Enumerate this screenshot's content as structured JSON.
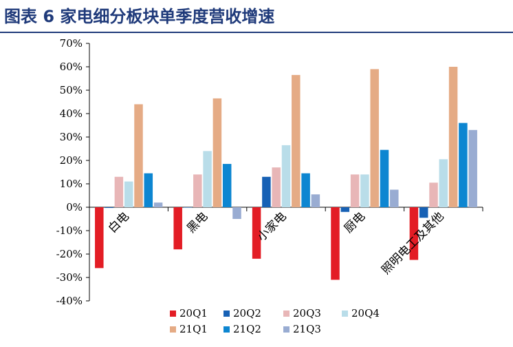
{
  "page": {
    "title": "图表 6  家电细分板块单季度营收增速"
  },
  "colors": {
    "title": "#1f3a7a",
    "series": [
      "#e31d25",
      "#1761b5",
      "#e8b6b7",
      "#b9dde9",
      "#e5ab85",
      "#0d86d1",
      "#99acd2"
    ]
  },
  "chart_data": {
    "type": "bar",
    "title": "",
    "xlabel": "",
    "ylabel": "",
    "categories": [
      "白电",
      "黑电",
      "小家电",
      "厨电",
      "照明电工及其他"
    ],
    "y_ticks": [
      "70%",
      "60%",
      "50%",
      "40%",
      "30%",
      "20%",
      "10%",
      "0%",
      "-10%",
      "-20%",
      "-30%",
      "-40%"
    ],
    "ylim": [
      -40,
      70
    ],
    "grid": false,
    "legend_position": "bottom",
    "series": [
      {
        "name": "20Q1",
        "values": [
          -26,
          -18,
          -22,
          -31,
          -22.5
        ]
      },
      {
        "name": "20Q2",
        "values": [
          -0.3,
          0,
          13,
          -2,
          -4.5
        ]
      },
      {
        "name": "20Q3",
        "values": [
          13,
          14,
          17,
          14,
          10.5
        ]
      },
      {
        "name": "20Q4",
        "values": [
          11,
          24,
          26.5,
          14,
          20.5
        ]
      },
      {
        "name": "21Q1",
        "values": [
          44,
          46.5,
          56.5,
          59,
          60
        ]
      },
      {
        "name": "21Q2",
        "values": [
          14.5,
          18.5,
          14.5,
          24.5,
          36
        ]
      },
      {
        "name": "21Q3",
        "values": [
          2,
          -5,
          5.5,
          7.5,
          33
        ]
      }
    ]
  }
}
